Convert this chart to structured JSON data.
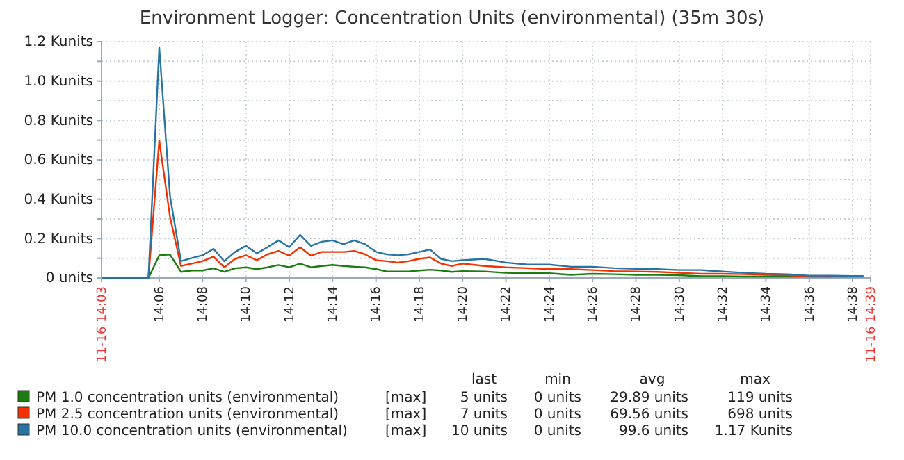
{
  "chart_data": {
    "type": "line",
    "title": "Environment Logger: Concentration Units (environmental) (35m 30s)",
    "x": [
      14.0556,
      14.0917,
      14.1,
      14.1083,
      14.1167,
      14.125,
      14.1333,
      14.1417,
      14.15,
      14.1583,
      14.1667,
      14.175,
      14.1833,
      14.1917,
      14.2,
      14.2083,
      14.2167,
      14.225,
      14.2333,
      14.2417,
      14.25,
      14.2583,
      14.2667,
      14.275,
      14.2833,
      14.2917,
      14.3,
      14.3083,
      14.3167,
      14.325,
      14.3333,
      14.35,
      14.3667,
      14.3833,
      14.4,
      14.4167,
      14.4333,
      14.45,
      14.4667,
      14.4833,
      14.5,
      14.5167,
      14.5333,
      14.55,
      14.5667,
      14.5833,
      14.6,
      14.6167,
      14.6333,
      14.6417
    ],
    "series": [
      {
        "name": "PM 1.0 concentration units (environmental)",
        "color": "#1a7c11",
        "values": [
          0,
          0,
          0.115,
          0.119,
          0.031,
          0.038,
          0.038,
          0.049,
          0.031,
          0.049,
          0.054,
          0.045,
          0.054,
          0.066,
          0.054,
          0.073,
          0.054,
          0.061,
          0.066,
          0.061,
          0.057,
          0.054,
          0.045,
          0.033,
          0.033,
          0.033,
          0.038,
          0.042,
          0.038,
          0.031,
          0.035,
          0.033,
          0.026,
          0.024,
          0.024,
          0.016,
          0.021,
          0.019,
          0.016,
          0.016,
          0.014,
          0.009,
          0.009,
          0.007,
          0.007,
          0.007,
          0.007,
          0.007,
          null,
          null
        ]
      },
      {
        "name": "PM 2.5 concentration units (environmental)",
        "color": "#f63100",
        "values": [
          0,
          0,
          0.698,
          0.309,
          0.061,
          0.073,
          0.085,
          0.108,
          0.054,
          0.097,
          0.115,
          0.09,
          0.12,
          0.137,
          0.113,
          0.156,
          0.113,
          0.132,
          0.132,
          0.132,
          0.137,
          0.12,
          0.09,
          0.085,
          0.078,
          0.085,
          0.097,
          0.104,
          0.073,
          0.061,
          0.073,
          0.061,
          0.054,
          0.05,
          0.045,
          0.045,
          0.04,
          0.035,
          0.033,
          0.031,
          0.026,
          0.021,
          0.021,
          0.019,
          0.016,
          0.014,
          0.009,
          0.007,
          0.007,
          0.007
        ]
      },
      {
        "name": "PM 10.0 concentration units (environmental)",
        "color": "#2774a4",
        "values": [
          0,
          0,
          1.17,
          0.415,
          0.085,
          0.101,
          0.115,
          0.148,
          0.085,
          0.132,
          0.163,
          0.125,
          0.156,
          0.191,
          0.156,
          0.219,
          0.163,
          0.184,
          0.191,
          0.172,
          0.191,
          0.172,
          0.132,
          0.12,
          0.115,
          0.12,
          0.132,
          0.144,
          0.097,
          0.085,
          0.09,
          0.097,
          0.078,
          0.068,
          0.068,
          0.057,
          0.057,
          0.05,
          0.047,
          0.045,
          0.04,
          0.04,
          0.033,
          0.026,
          0.021,
          0.019,
          0.012,
          0.012,
          0.01,
          0.01
        ]
      }
    ],
    "xlim": [
      14.0556,
      14.6472
    ],
    "xticks": [
      {
        "value": 14.0556,
        "label": "11-16 14:03"
      },
      {
        "value": 14.1,
        "label": "14:06"
      },
      {
        "value": 14.1333,
        "label": "14:08"
      },
      {
        "value": 14.1667,
        "label": "14:10"
      },
      {
        "value": 14.2,
        "label": "14:12"
      },
      {
        "value": 14.2333,
        "label": "14:14"
      },
      {
        "value": 14.2667,
        "label": "14:16"
      },
      {
        "value": 14.3,
        "label": "14:18"
      },
      {
        "value": 14.3333,
        "label": "14:20"
      },
      {
        "value": 14.3667,
        "label": "14:22"
      },
      {
        "value": 14.4,
        "label": "14:24"
      },
      {
        "value": 14.4333,
        "label": "14:26"
      },
      {
        "value": 14.4667,
        "label": "14:28"
      },
      {
        "value": 14.5,
        "label": "14:30"
      },
      {
        "value": 14.5333,
        "label": "14:32"
      },
      {
        "value": 14.5667,
        "label": "14:34"
      },
      {
        "value": 14.6,
        "label": "14:36"
      },
      {
        "value": 14.6333,
        "label": "14:38"
      },
      {
        "value": 14.6472,
        "label": "11-16 14:39"
      }
    ],
    "ylim": [
      0,
      1.2
    ],
    "yticks": [
      {
        "value": 0,
        "label": "0 units"
      },
      {
        "value": 0.1,
        "label": null
      },
      {
        "value": 0.2,
        "label": "0.2 Kunits"
      },
      {
        "value": 0.3,
        "label": null
      },
      {
        "value": 0.4,
        "label": "0.4 Kunits"
      },
      {
        "value": 0.5,
        "label": null
      },
      {
        "value": 0.6,
        "label": "0.6 Kunits"
      },
      {
        "value": 0.7,
        "label": null
      },
      {
        "value": 0.8,
        "label": "0.8 Kunits"
      },
      {
        "value": 0.9,
        "label": null
      },
      {
        "value": 1.0,
        "label": "1.0 Kunits"
      },
      {
        "value": 1.1,
        "label": null
      },
      {
        "value": 1.2,
        "label": "1.2 Kunits"
      }
    ],
    "grid": true,
    "legend": "bottom",
    "line_style": "solid",
    "annotations": [
      "last",
      "min",
      "avg",
      "max",
      "[max]",
      "5 units",
      "0 units",
      "29.89 units",
      "119 units",
      "[max]",
      "7 units",
      "0 units",
      "69.56 units",
      "698 units",
      "[max]",
      "10 units",
      "0 units",
      "99.6 units",
      "1.17 Kunits"
    ]
  }
}
